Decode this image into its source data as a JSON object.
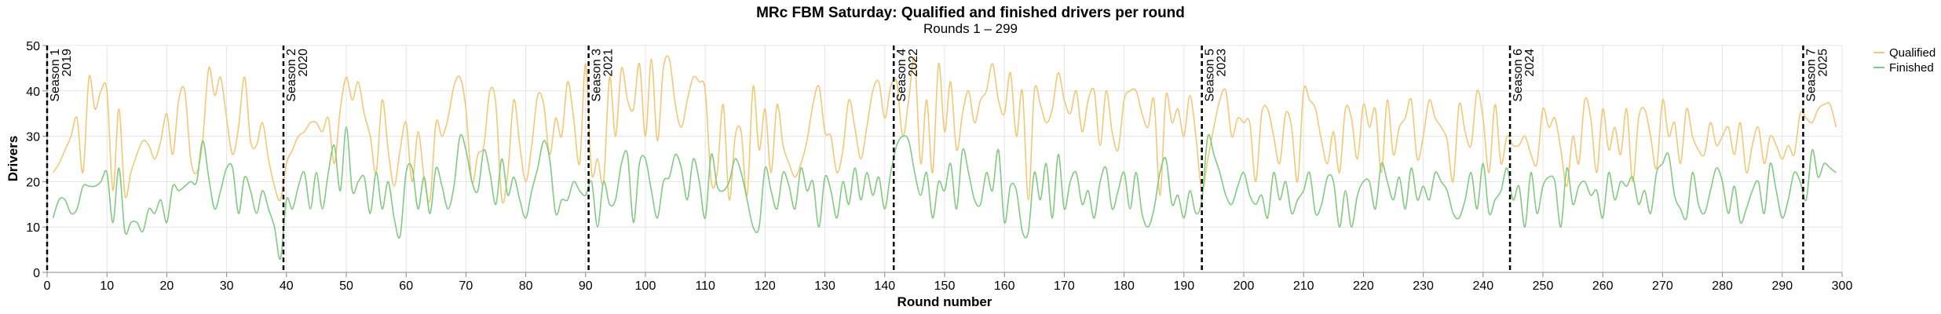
{
  "chart_data": {
    "type": "line",
    "title": "MRc FBM Saturday: Qualified and finished drivers per round",
    "subtitle": "Rounds 1 – 299",
    "xlabel": "Round number",
    "ylabel": "Drivers",
    "xlim": [
      0,
      300
    ],
    "ylim": [
      0,
      50
    ],
    "xticks": [
      0,
      10,
      20,
      30,
      40,
      50,
      60,
      70,
      80,
      90,
      100,
      110,
      120,
      130,
      140,
      150,
      160,
      170,
      180,
      190,
      200,
      210,
      220,
      230,
      240,
      250,
      260,
      270,
      280,
      290,
      300
    ],
    "yticks": [
      0,
      10,
      20,
      30,
      40,
      50
    ],
    "grid": true,
    "legend": "top-right",
    "seasons": [
      {
        "x": 0,
        "label": "Season 1",
        "year": "2019"
      },
      {
        "x": 39.5,
        "label": "Season 2",
        "year": "2020"
      },
      {
        "x": 90.5,
        "label": "Season 3",
        "year": "2021"
      },
      {
        "x": 141.5,
        "label": "Season 4",
        "year": "2022"
      },
      {
        "x": 193,
        "label": "Season 5",
        "year": "2023"
      },
      {
        "x": 244.5,
        "label": "Season 6",
        "year": "2024"
      },
      {
        "x": 293.5,
        "label": "Season 7",
        "year": "2025"
      }
    ],
    "x": [
      1,
      2,
      3,
      4,
      5,
      6,
      7,
      8,
      9,
      10,
      11,
      12,
      13,
      14,
      15,
      16,
      17,
      18,
      19,
      20,
      21,
      22,
      23,
      24,
      25,
      26,
      27,
      28,
      29,
      30,
      31,
      32,
      33,
      34,
      35,
      36,
      37,
      38,
      39,
      40,
      41,
      42,
      43,
      44,
      45,
      46,
      47,
      48,
      49,
      50,
      51,
      52,
      53,
      54,
      55,
      56,
      57,
      58,
      59,
      60,
      61,
      62,
      63,
      64,
      65,
      66,
      67,
      68,
      69,
      70,
      71,
      72,
      73,
      74,
      75,
      76,
      77,
      78,
      79,
      80,
      81,
      82,
      83,
      84,
      85,
      86,
      87,
      88,
      89,
      90,
      91,
      92,
      93,
      94,
      95,
      96,
      97,
      98,
      99,
      100,
      101,
      102,
      103,
      104,
      105,
      106,
      107,
      108,
      109,
      110,
      111,
      112,
      113,
      114,
      115,
      116,
      117,
      118,
      119,
      120,
      121,
      122,
      123,
      124,
      125,
      126,
      127,
      128,
      129,
      130,
      131,
      132,
      133,
      134,
      135,
      136,
      137,
      138,
      139,
      140,
      141,
      142,
      143,
      144,
      145,
      146,
      147,
      148,
      149,
      150,
      151,
      152,
      153,
      154,
      155,
      156,
      157,
      158,
      159,
      160,
      161,
      162,
      163,
      164,
      165,
      166,
      167,
      168,
      169,
      170,
      171,
      172,
      173,
      174,
      175,
      176,
      177,
      178,
      179,
      180,
      181,
      182,
      183,
      184,
      185,
      186,
      187,
      188,
      189,
      190,
      191,
      192,
      193,
      194,
      195,
      196,
      197,
      198,
      199,
      200,
      201,
      202,
      203,
      204,
      205,
      206,
      207,
      208,
      209,
      210,
      211,
      212,
      213,
      214,
      215,
      216,
      217,
      218,
      219,
      220,
      221,
      222,
      223,
      224,
      225,
      226,
      227,
      228,
      229,
      230,
      231,
      232,
      233,
      234,
      235,
      236,
      237,
      238,
      239,
      240,
      241,
      242,
      243,
      244,
      245,
      246,
      247,
      248,
      249,
      250,
      251,
      252,
      253,
      254,
      255,
      256,
      257,
      258,
      259,
      260,
      261,
      262,
      263,
      264,
      265,
      266,
      267,
      268,
      269,
      270,
      271,
      272,
      273,
      274,
      275,
      276,
      277,
      278,
      279,
      280,
      281,
      282,
      283,
      284,
      285,
      286,
      287,
      288,
      289,
      290,
      291,
      292,
      293,
      294,
      295,
      296,
      297,
      298,
      299
    ],
    "series": [
      {
        "name": "Qualified",
        "color": "#f2c875",
        "values": [
          22,
          24,
          27,
          30,
          34,
          22,
          43,
          36,
          40,
          40,
          18,
          36,
          17,
          22,
          26,
          29,
          28,
          25,
          29,
          35,
          26,
          38,
          40,
          25,
          22,
          29,
          45,
          39,
          43,
          34,
          26,
          32,
          43,
          29,
          28,
          33,
          25,
          19,
          16,
          24,
          27,
          30,
          31,
          33,
          33,
          31,
          34,
          24,
          36,
          43,
          38,
          42,
          35,
          30,
          22,
          38,
          27,
          19,
          27,
          33,
          20,
          31,
          21,
          16,
          33,
          30,
          34,
          41,
          43,
          36,
          20,
          26,
          28,
          40,
          37,
          16,
          22,
          38,
          28,
          20,
          28,
          39,
          37,
          26,
          34,
          30,
          42,
          34,
          24,
          46,
          22,
          25,
          20,
          43,
          30,
          45,
          38,
          36,
          46,
          30,
          47,
          29,
          45,
          47,
          37,
          32,
          38,
          43,
          42,
          40,
          20,
          22,
          37,
          16,
          30,
          31,
          17,
          41,
          27,
          36,
          22,
          37,
          28,
          24,
          21,
          24,
          29,
          37,
          41,
          31,
          30,
          22,
          27,
          38,
          32,
          25,
          32,
          40,
          42,
          34,
          41,
          42,
          30,
          38,
          47,
          24,
          38,
          22,
          46,
          31,
          42,
          27,
          35,
          40,
          33,
          38,
          40,
          46,
          38,
          35,
          44,
          30,
          40,
          16,
          40,
          37,
          33,
          36,
          44,
          38,
          35,
          40,
          31,
          38,
          40,
          28,
          40,
          31,
          27,
          38,
          40,
          40,
          35,
          32,
          38,
          17,
          39,
          33,
          36,
          30,
          39,
          30,
          18,
          25,
          32,
          38,
          40,
          30,
          34,
          33,
          33,
          20,
          35,
          36,
          30,
          24,
          35,
          32,
          20,
          40,
          38,
          36,
          29,
          24,
          31,
          22,
          36,
          34,
          25,
          37,
          32,
          36,
          22,
          38,
          26,
          32,
          34,
          38,
          25,
          30,
          38,
          34,
          32,
          29,
          20,
          37,
          31,
          28,
          40,
          34,
          22,
          37,
          24,
          30,
          28,
          28,
          30,
          26,
          24,
          36,
          32,
          34,
          27,
          19,
          30,
          24,
          38,
          34,
          22,
          36,
          27,
          32,
          26,
          36,
          20,
          34,
          36,
          30,
          23,
          38,
          30,
          33,
          24,
          36,
          30,
          27,
          26,
          33,
          28,
          30,
          32,
          26,
          33,
          22,
          28,
          32,
          24,
          30,
          28,
          25,
          28,
          26,
          35,
          34,
          33,
          36,
          37,
          37,
          32
        ]
      },
      {
        "name": "Finished",
        "color": "#7fcb7f",
        "values": [
          12,
          16,
          16,
          13,
          14,
          19,
          19,
          19,
          20,
          22,
          11,
          23,
          9,
          11,
          11,
          9,
          14,
          13,
          16,
          11,
          19,
          18,
          19,
          20,
          20,
          29,
          21,
          14,
          18,
          23,
          23,
          13,
          21,
          18,
          13,
          18,
          14,
          10,
          3,
          16,
          14,
          19,
          22,
          14,
          22,
          14,
          22,
          28,
          18,
          32,
          18,
          20,
          21,
          13,
          22,
          14,
          20,
          12,
          8,
          22,
          23,
          14,
          21,
          13,
          23,
          19,
          14,
          19,
          30,
          27,
          20,
          18,
          27,
          22,
          15,
          25,
          17,
          21,
          16,
          12,
          18,
          23,
          29,
          25,
          13,
          16,
          16,
          20,
          18,
          17,
          20,
          10,
          20,
          15,
          16,
          24,
          26,
          11,
          24,
          25,
          18,
          12,
          20,
          21,
          26,
          23,
          16,
          25,
          20,
          12,
          26,
          19,
          18,
          20,
          25,
          22,
          16,
          10,
          10,
          23,
          18,
          14,
          22,
          19,
          14,
          23,
          18,
          20,
          10,
          21,
          18,
          12,
          20,
          15,
          23,
          16,
          22,
          17,
          21,
          14,
          22,
          28,
          30,
          29,
          22,
          17,
          22,
          12,
          20,
          18,
          24,
          14,
          27,
          22,
          16,
          15,
          22,
          18,
          27,
          11,
          19,
          18,
          9,
          9,
          22,
          16,
          24,
          12,
          26,
          14,
          20,
          22,
          15,
          18,
          12,
          20,
          23,
          14,
          18,
          22,
          14,
          22,
          13,
          10,
          14,
          22,
          25,
          15,
          17,
          12,
          18,
          13,
          16,
          30,
          26,
          22,
          17,
          15,
          19,
          22,
          17,
          15,
          17,
          12,
          22,
          16,
          20,
          13,
          16,
          18,
          22,
          13,
          15,
          21,
          20,
          10,
          18,
          10,
          17,
          20,
          20,
          14,
          24,
          20,
          16,
          21,
          14,
          23,
          16,
          19,
          16,
          22,
          20,
          18,
          13,
          12,
          16,
          22,
          14,
          24,
          13,
          16,
          18,
          23,
          16,
          19,
          10,
          22,
          13,
          19,
          21,
          20,
          10,
          23,
          15,
          19,
          20,
          17,
          18,
          12,
          22,
          16,
          20,
          19,
          21,
          15,
          18,
          13,
          22,
          24,
          26,
          17,
          14,
          12,
          22,
          15,
          13,
          18,
          23,
          20,
          13,
          19,
          11,
          14,
          18,
          20,
          13,
          24,
          18,
          12,
          16,
          22,
          20,
          16,
          27,
          21,
          24,
          23,
          22
        ]
      }
    ]
  }
}
